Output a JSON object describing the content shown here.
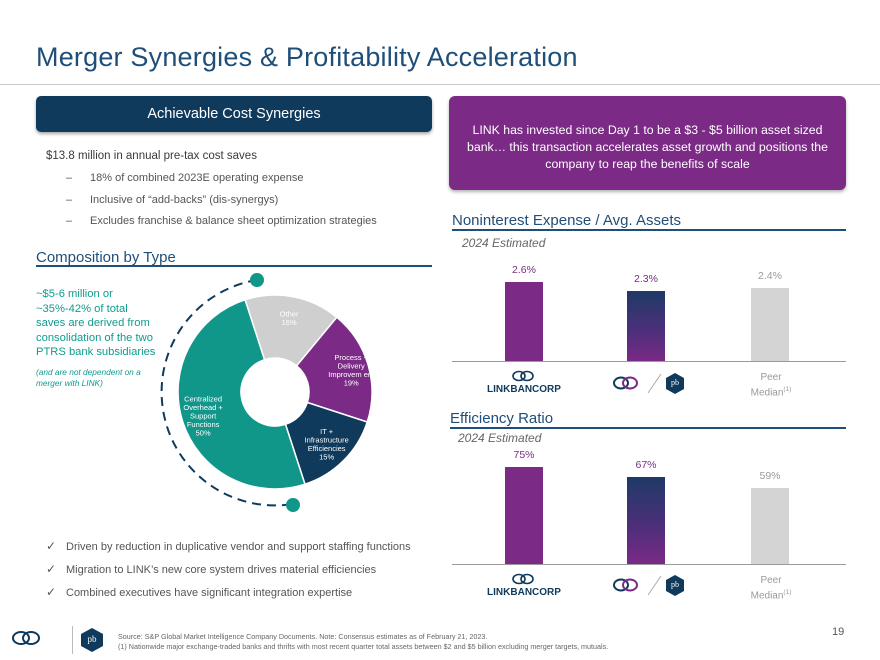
{
  "title": "Merger Synergies & Profitability Acceleration",
  "cost_banner": "Achievable Cost Synergies",
  "cost_headline": "$13.8 million in annual pre-tax cost saves",
  "cost_bullets": [
    "18% of combined 2023E operating expense",
    "Inclusive of “add-backs” (dis-synergys)",
    "Excludes franchise & balance sheet optimization strategies"
  ],
  "composition": {
    "heading": "Composition by Type",
    "note": "~$5-6 million or ~35%-42% of total saves are derived from consolidation of the two PTRS bank subsidiaries",
    "note_italic": "(and are not dependent on a merger with LINK)",
    "slices": [
      {
        "label": "Other",
        "pct_label": "16%",
        "value": 16,
        "color": "#cfcfcf"
      },
      {
        "label": "Process + Delivery Improvem ent",
        "pct_label": "19%",
        "value": 19,
        "color": "#7b2a86"
      },
      {
        "label": "IT + Infrastructure Efficiencies",
        "pct_label": "15%",
        "value": 15,
        "color": "#0f3a5c"
      },
      {
        "label": "Centralized Overhead + Support Functions",
        "pct_label": "50%",
        "value": 50,
        "color": "#11968a"
      }
    ]
  },
  "checks": [
    "Driven by reduction in duplicative vendor and support staffing functions",
    "Migration to LINK’s new core system drives material efficiencies",
    "Combined executives have significant integration expertise"
  ],
  "purple_box": "LINK has invested since Day 1 to be a $3 - $5 billion asset sized bank… this transaction accelerates asset growth and positions the company to reap the benefits of scale",
  "nie_chart": {
    "title": "Noninterest Expense / Avg. Assets",
    "subtitle": "2024 Estimated",
    "categories": [
      "LINKBANCORP",
      "Combined",
      "Peer Median(1)"
    ],
    "values": [
      2.6,
      2.3,
      2.4
    ],
    "labels": [
      "2.6%",
      "2.3%",
      "2.4%"
    ],
    "colors": [
      "#7b2a86",
      "#1f3a66",
      "#d4d4d4"
    ],
    "label_colors": [
      "#7b2a86",
      "#7b2a86",
      "#9a9a9a"
    ]
  },
  "eff_chart": {
    "title": "Efficiency Ratio",
    "subtitle": "2024 Estimated",
    "categories": [
      "LINKBANCORP",
      "Combined",
      "Peer Median(1)"
    ],
    "values": [
      75,
      67,
      59
    ],
    "labels": [
      "75%",
      "67%",
      "59%"
    ],
    "colors": [
      "#7b2a86",
      "#1f3a66",
      "#d4d4d4"
    ],
    "label_colors": [
      "#7b2a86",
      "#7b2a86",
      "#9a9a9a"
    ]
  },
  "logo_text": "LINKBANCORP",
  "peer_text": "Peer",
  "peer_text2": "Median",
  "peer_sup": "(1)",
  "pb_mark": "pb",
  "footer_line1": "Source: S&P Global Market Intelligence Company Documents. Note: Consensus estimates as of February 21, 2023.",
  "footer_line2": "(1) Nationwide major exchange-traded banks and thrifts with most recent quarter total assets between $2 and $5 billion excluding merger targets, mutuals.",
  "page_number": "19",
  "colors": {
    "navy": "#0f3a5c",
    "purple": "#7b2a86",
    "teal": "#11968a",
    "blue": "#1f4e79"
  }
}
